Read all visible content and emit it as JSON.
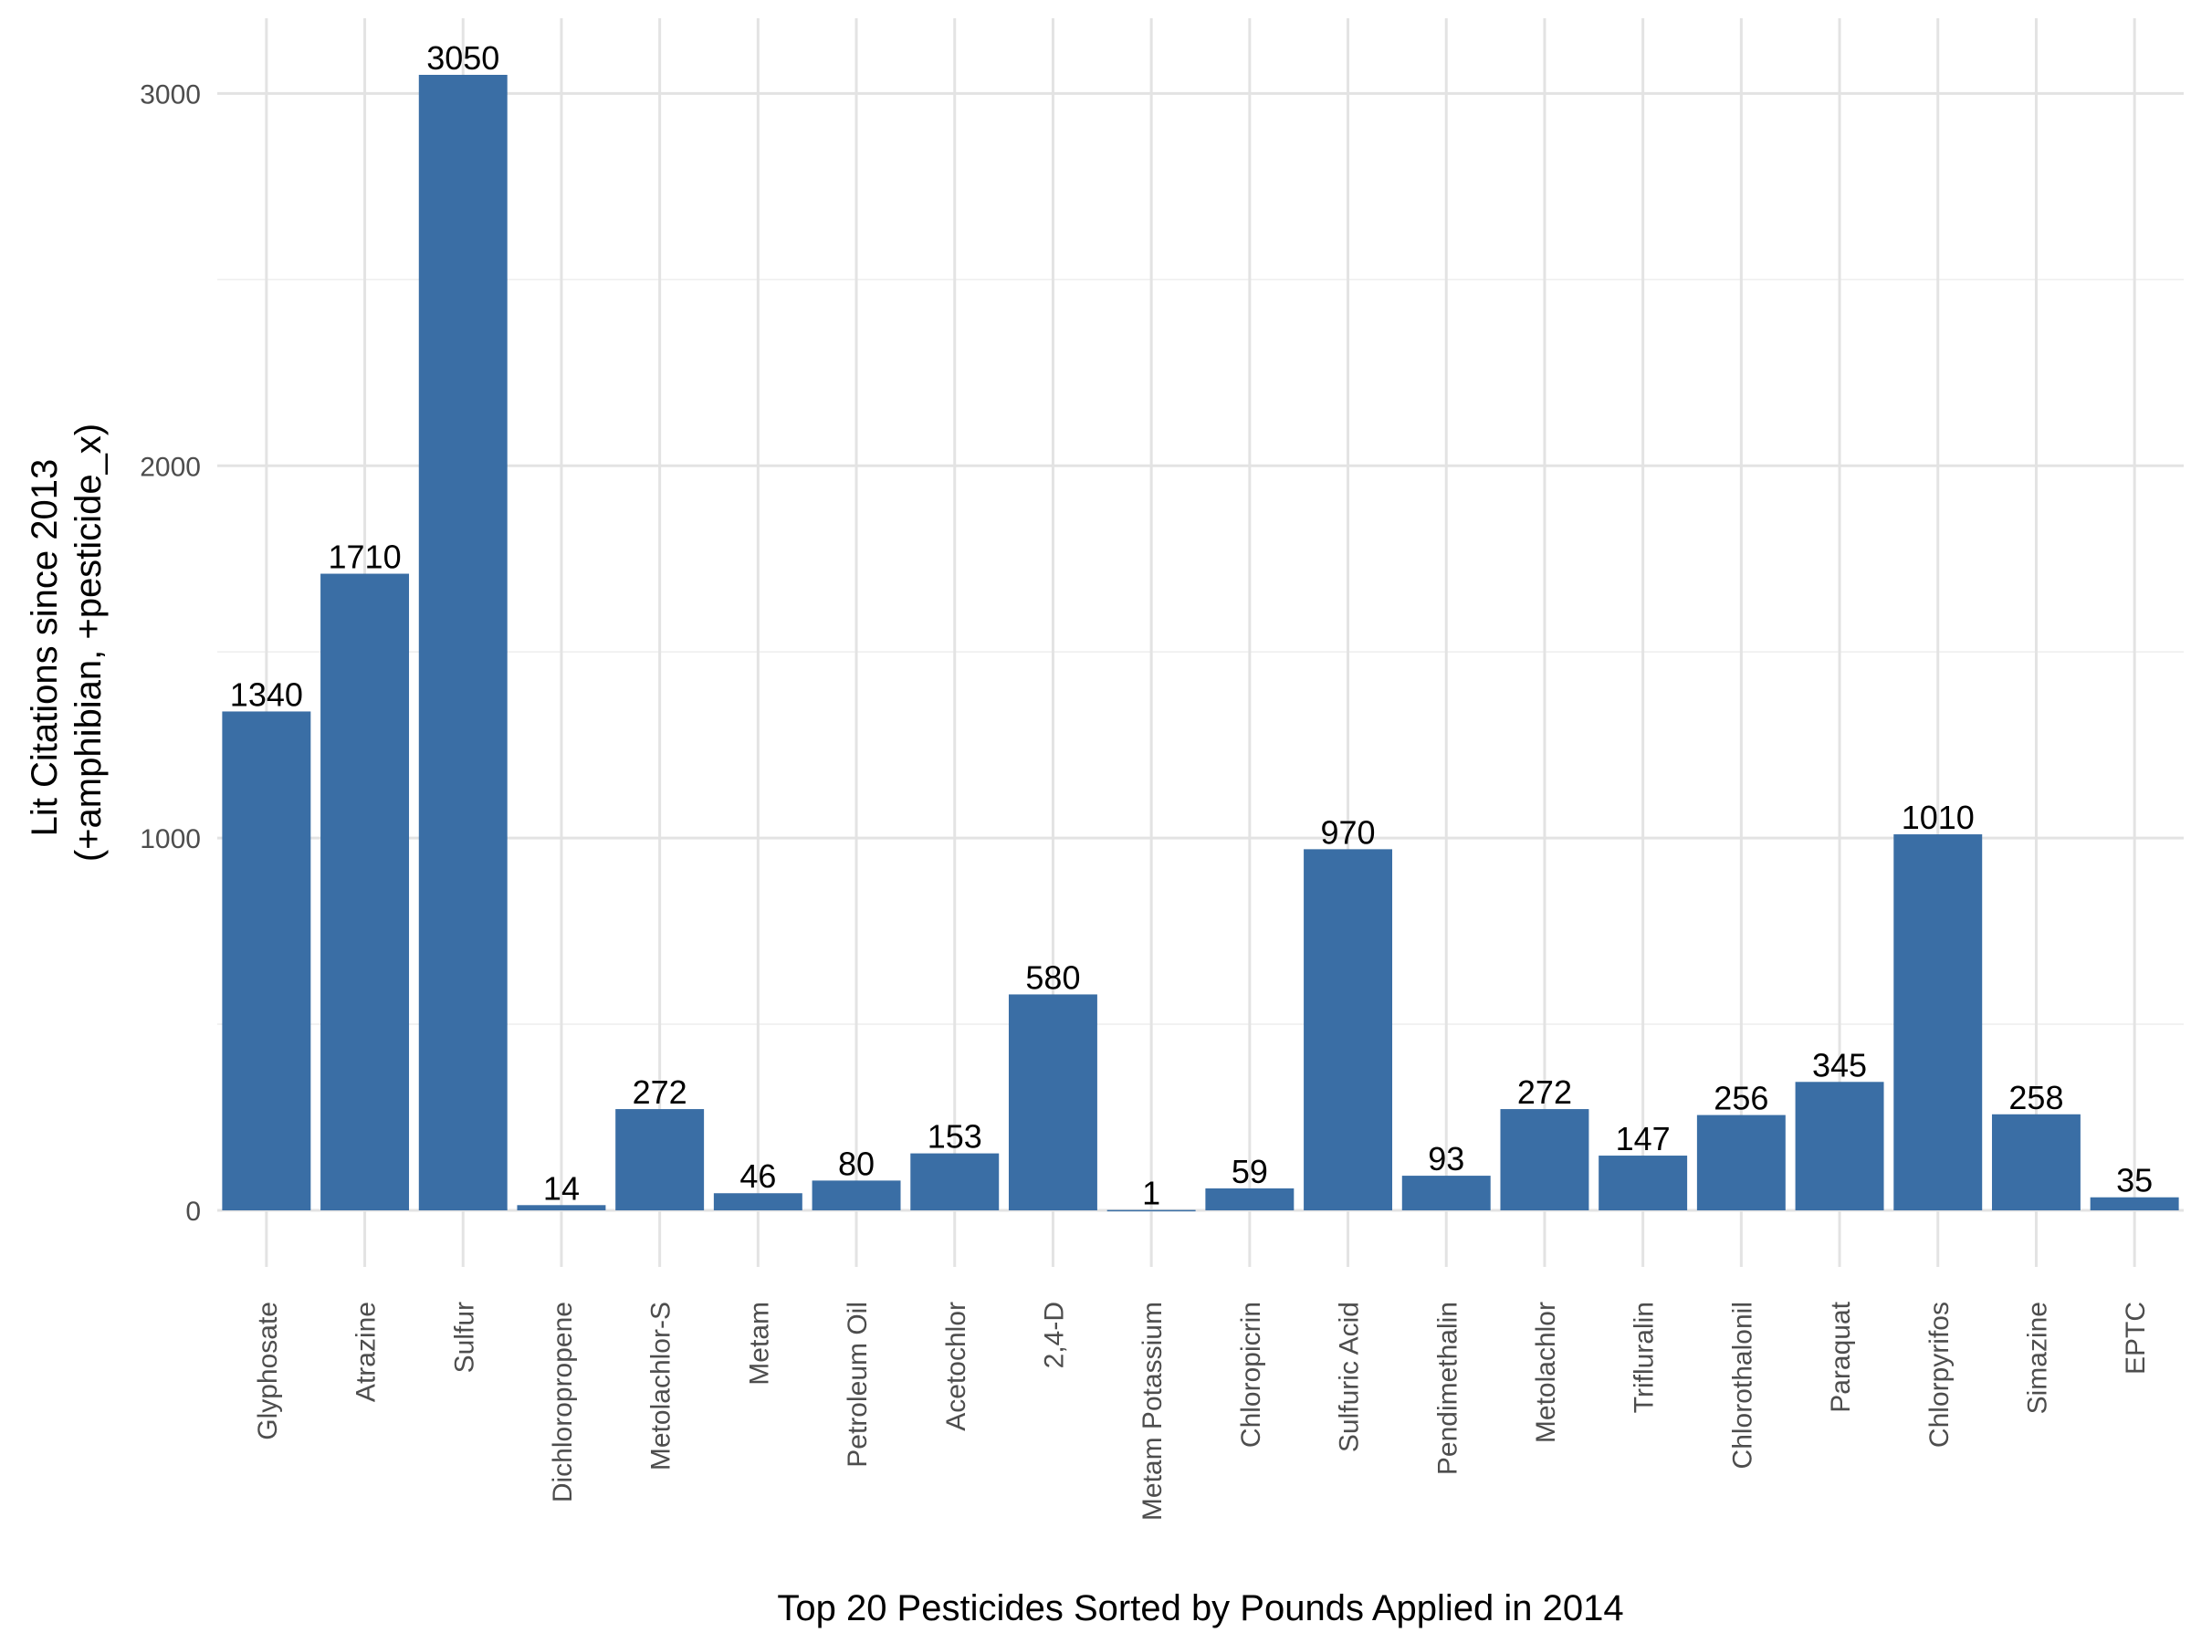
{
  "chart_data": {
    "type": "bar",
    "xlabel": "Top 20 Pesticides Sorted by Pounds Applied in 2014",
    "ylabel_lines": [
      "Lit Citations since 2013",
      "(+amphibian, +pesticide_x)"
    ],
    "categories": [
      "Glyphosate",
      "Atrazine",
      "Sulfur",
      "Dichloropropene",
      "Metolachlor-S",
      "Metam",
      "Petroleum Oil",
      "Acetochlor",
      "2,4-D",
      "Metam Potassium",
      "Chloropicrin",
      "Sulfuric Acid",
      "Pendimethalin",
      "Metolachlor",
      "Trifluralin",
      "Chlorothalonil",
      "Paraquat",
      "Chlorpyrifos",
      "Simazine",
      "EPTC"
    ],
    "values": [
      1340,
      1710,
      3050,
      14,
      272,
      46,
      80,
      153,
      580,
      1,
      59,
      970,
      93,
      272,
      147,
      256,
      345,
      1010,
      258,
      35
    ],
    "data_labels": [
      "1340",
      "1710",
      "3050",
      "14",
      "272",
      "46",
      "80",
      "153",
      "580",
      "1",
      "59",
      "970",
      "93",
      "272",
      "147",
      "256",
      "345",
      "1010",
      "258",
      "35"
    ],
    "yticks": [
      0,
      1000,
      2000,
      3000
    ],
    "ytick_labels": [
      "0",
      "1000",
      "2000",
      "3000"
    ],
    "ylim": [
      -152,
      3202
    ],
    "grid": true,
    "bar_color": "#3a6ea5"
  }
}
